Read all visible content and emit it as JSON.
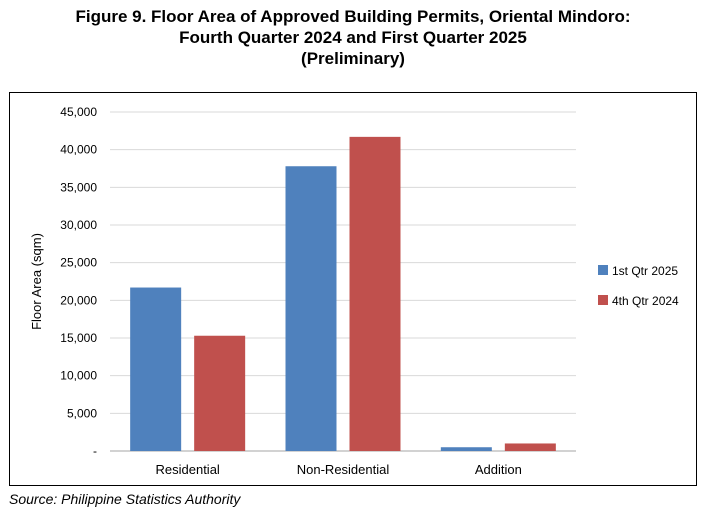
{
  "title": {
    "line1": "Figure 9.  Floor Area of Approved Building Permits, Oriental Mindoro:",
    "line2": "Fourth Quarter 2024 and First Quarter 2025",
    "line3": "(Preliminary)"
  },
  "source": "Source: Philippine Statistics Authority",
  "chart_data": {
    "type": "bar",
    "categories": [
      "Residential",
      "Non-Residential",
      "Addition"
    ],
    "series": [
      {
        "name": "1st Qtr 2025",
        "color": "#4f81bd",
        "values": [
          21700,
          37800,
          500
        ]
      },
      {
        "name": "4th Qtr 2024",
        "color": "#c0504d",
        "values": [
          15300,
          41700,
          1000
        ]
      }
    ],
    "ylabel": "Floor Area (sqm)",
    "xlabel": "",
    "ylim": [
      0,
      45000
    ],
    "yticks": [
      0,
      5000,
      10000,
      15000,
      20000,
      25000,
      30000,
      35000,
      40000,
      45000
    ],
    "ytick_labels": [
      "-",
      "5,000",
      "10,000",
      "15,000",
      "20,000",
      "25,000",
      "30,000",
      "35,000",
      "40,000",
      "45,000"
    ],
    "grid": true,
    "legend_position": "right"
  }
}
